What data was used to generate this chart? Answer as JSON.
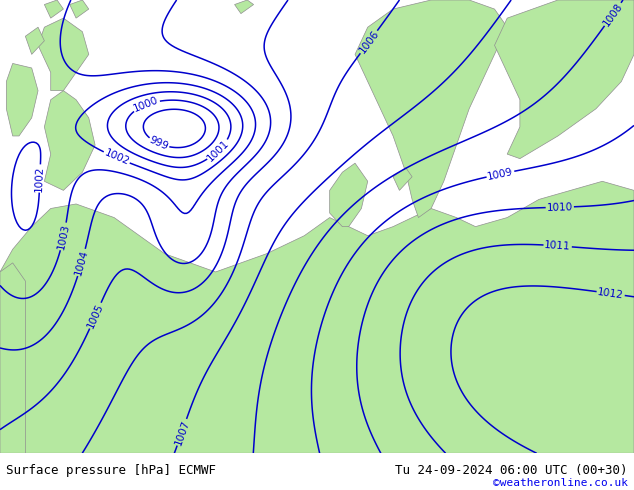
{
  "title_left": "Surface pressure [hPa] ECMWF",
  "title_right": "Tu 24-09-2024 06:00 UTC (00+30)",
  "credit": "©weatheronline.co.uk",
  "bg_color": "#cecece",
  "land_color": "#b5e8a0",
  "sea_color": "#cecece",
  "contour_color": "#0000cc",
  "contour_linewidth": 1.1,
  "label_fontsize": 7.5,
  "footer_fontsize": 9,
  "credit_fontsize": 8,
  "credit_color": "#0000ee",
  "figsize": [
    6.34,
    4.9
  ],
  "dpi": 100
}
